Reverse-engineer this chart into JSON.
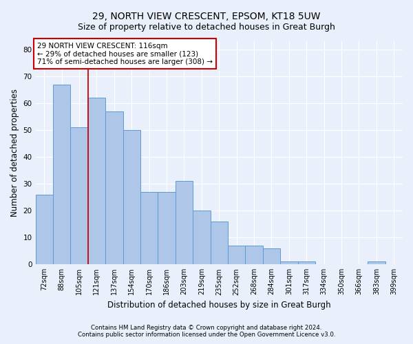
{
  "title": "29, NORTH VIEW CRESCENT, EPSOM, KT18 5UW",
  "subtitle": "Size of property relative to detached houses in Great Burgh",
  "xlabel": "Distribution of detached houses by size in Great Burgh",
  "ylabel": "Number of detached properties",
  "footnote1": "Contains HM Land Registry data © Crown copyright and database right 2024.",
  "footnote2": "Contains public sector information licensed under the Open Government Licence v3.0.",
  "bar_labels": [
    "72sqm",
    "88sqm",
    "105sqm",
    "121sqm",
    "137sqm",
    "154sqm",
    "170sqm",
    "186sqm",
    "203sqm",
    "219sqm",
    "235sqm",
    "252sqm",
    "268sqm",
    "284sqm",
    "301sqm",
    "317sqm",
    "334sqm",
    "350sqm",
    "366sqm",
    "383sqm",
    "399sqm"
  ],
  "bar_values": [
    26,
    67,
    51,
    62,
    57,
    50,
    27,
    27,
    31,
    20,
    16,
    7,
    7,
    6,
    1,
    1,
    0,
    0,
    0,
    1,
    0
  ],
  "bar_color": "#aec6e8",
  "bar_edge_color": "#5b9bd5",
  "background_color": "#eaf0fb",
  "grid_color": "#ffffff",
  "red_line_x": 2.5,
  "annotation_line0": "29 NORTH VIEW CRESCENT: 116sqm",
  "annotation_line1": "← 29% of detached houses are smaller (123)",
  "annotation_line2": "71% of semi-detached houses are larger (308) →",
  "annotation_box_color": "#ffffff",
  "annotation_box_edge": "#cc0000",
  "red_line_color": "#cc0000",
  "ylim": [
    0,
    83
  ],
  "yticks": [
    0,
    10,
    20,
    30,
    40,
    50,
    60,
    70,
    80
  ],
  "title_fontsize": 10,
  "subtitle_fontsize": 9,
  "xlabel_fontsize": 8.5,
  "ylabel_fontsize": 8.5,
  "tick_fontsize": 7,
  "annot_fontsize": 7.5
}
